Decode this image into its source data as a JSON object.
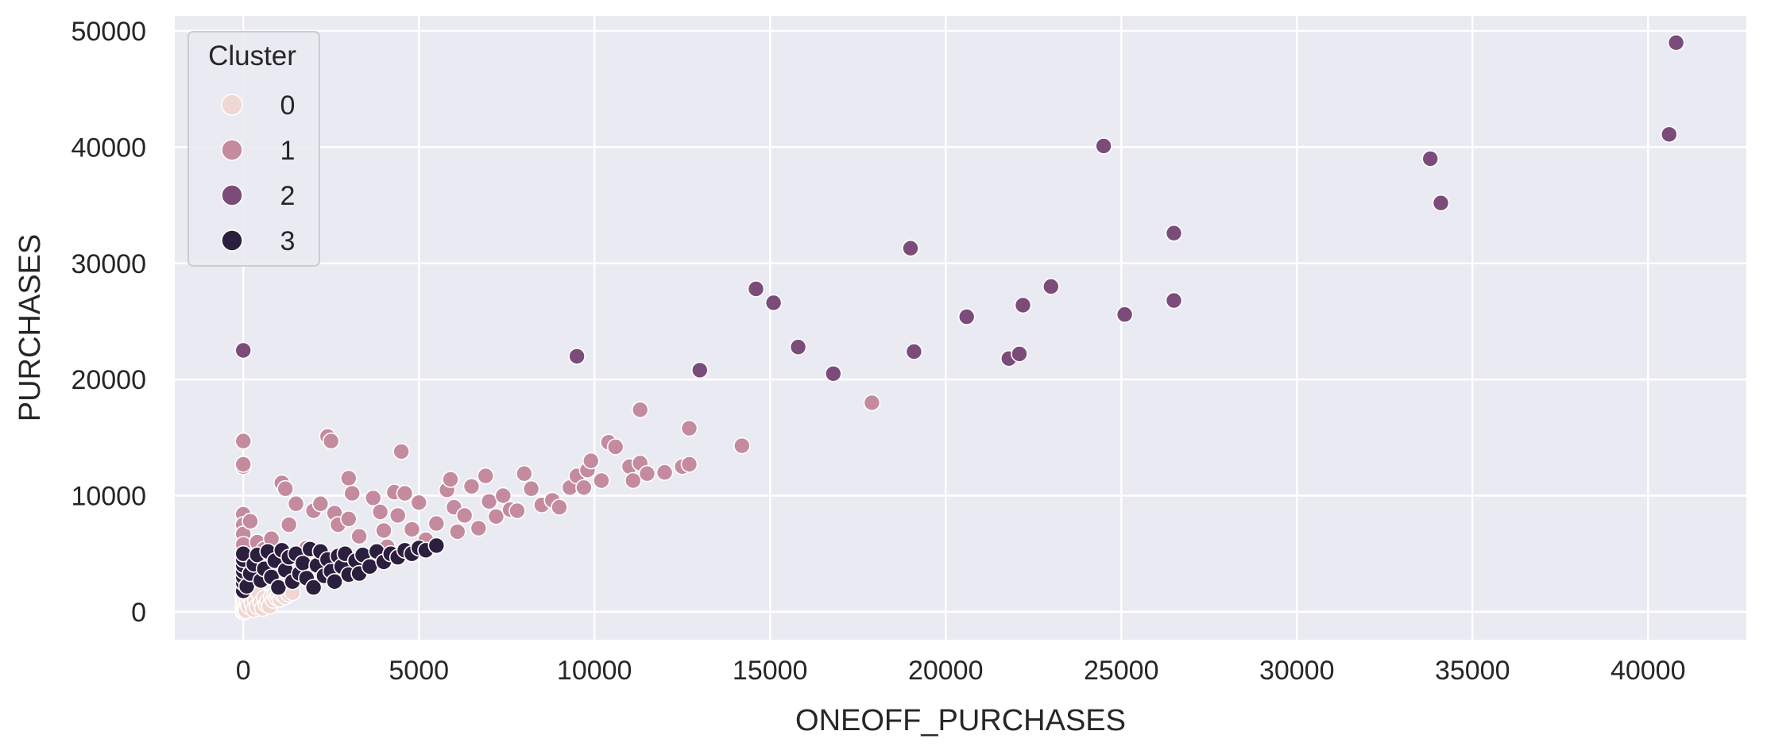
{
  "chart_data": {
    "type": "scatter",
    "xlabel": "ONEOFF_PURCHASES",
    "ylabel": "PURCHASES",
    "xlim": [
      -1950,
      42800
    ],
    "ylim": [
      -2400,
      51300
    ],
    "x_ticks": [
      0,
      5000,
      10000,
      15000,
      20000,
      25000,
      30000,
      35000,
      40000
    ],
    "y_ticks": [
      0,
      10000,
      20000,
      30000,
      40000,
      50000
    ],
    "grid": true,
    "legend": {
      "title": "Cluster",
      "placement": "top-left"
    },
    "colors": {
      "background": "#eaeaf2",
      "grid": "#ffffff",
      "point_edge": "#ffffff"
    },
    "series": [
      {
        "name": "0",
        "color": "#f0d7d1",
        "points": [
          [
            0,
            0
          ],
          [
            0,
            150
          ],
          [
            0,
            400
          ],
          [
            0,
            650
          ],
          [
            0,
            900
          ],
          [
            0,
            1150
          ],
          [
            0,
            1400
          ],
          [
            0,
            1650
          ],
          [
            60,
            300
          ],
          [
            80,
            100
          ],
          [
            120,
            800
          ],
          [
            150,
            500
          ],
          [
            200,
            1300
          ],
          [
            250,
            700
          ],
          [
            300,
            200
          ],
          [
            350,
            1000
          ],
          [
            400,
            450
          ],
          [
            450,
            1500
          ],
          [
            500,
            800
          ],
          [
            550,
            300
          ],
          [
            600,
            1200
          ],
          [
            650,
            650
          ],
          [
            700,
            900
          ],
          [
            750,
            500
          ],
          [
            800,
            1300
          ],
          [
            850,
            1000
          ],
          [
            900,
            1450
          ],
          [
            950,
            1200
          ],
          [
            1000,
            1400
          ],
          [
            1050,
            1100
          ],
          [
            1100,
            1550
          ],
          [
            1200,
            1300
          ],
          [
            1300,
            1500
          ],
          [
            1400,
            1650
          ]
        ]
      },
      {
        "name": "1",
        "color": "#c48b9f",
        "points": [
          [
            0,
            14700
          ],
          [
            0,
            12500
          ],
          [
            0,
            12700
          ],
          [
            0,
            8400
          ],
          [
            0,
            7500
          ],
          [
            0,
            6700
          ],
          [
            0,
            5800
          ],
          [
            0,
            4700
          ],
          [
            200,
            7800
          ],
          [
            400,
            6000
          ],
          [
            600,
            5400
          ],
          [
            800,
            6300
          ],
          [
            1100,
            11100
          ],
          [
            1200,
            10600
          ],
          [
            1300,
            7500
          ],
          [
            1500,
            9300
          ],
          [
            1800,
            5500
          ],
          [
            2000,
            8700
          ],
          [
            2200,
            9300
          ],
          [
            2400,
            15100
          ],
          [
            2500,
            14700
          ],
          [
            2600,
            8500
          ],
          [
            2700,
            7500
          ],
          [
            3000,
            11500
          ],
          [
            3100,
            10200
          ],
          [
            3000,
            8000
          ],
          [
            3300,
            6500
          ],
          [
            3700,
            9800
          ],
          [
            3900,
            8600
          ],
          [
            4000,
            7000
          ],
          [
            4100,
            5600
          ],
          [
            4300,
            10300
          ],
          [
            4400,
            8300
          ],
          [
            4500,
            13800
          ],
          [
            4600,
            10200
          ],
          [
            4800,
            7100
          ],
          [
            5000,
            9400
          ],
          [
            5200,
            6200
          ],
          [
            5500,
            7600
          ],
          [
            5800,
            10500
          ],
          [
            5900,
            11400
          ],
          [
            6000,
            9000
          ],
          [
            6100,
            6900
          ],
          [
            6300,
            8300
          ],
          [
            6500,
            10800
          ],
          [
            6700,
            7200
          ],
          [
            6900,
            11700
          ],
          [
            7000,
            9500
          ],
          [
            7200,
            8200
          ],
          [
            7400,
            10000
          ],
          [
            7600,
            8800
          ],
          [
            7800,
            8700
          ],
          [
            8000,
            11900
          ],
          [
            8200,
            10600
          ],
          [
            8500,
            9200
          ],
          [
            8800,
            9600
          ],
          [
            9000,
            9000
          ],
          [
            9300,
            10700
          ],
          [
            9500,
            11700
          ],
          [
            9700,
            10700
          ],
          [
            9800,
            12200
          ],
          [
            9900,
            13000
          ],
          [
            10200,
            11300
          ],
          [
            10400,
            14600
          ],
          [
            10600,
            14200
          ],
          [
            11000,
            12500
          ],
          [
            11100,
            11300
          ],
          [
            11300,
            12800
          ],
          [
            11300,
            17400
          ],
          [
            11500,
            11900
          ],
          [
            12000,
            12000
          ],
          [
            12500,
            12500
          ],
          [
            12700,
            15800
          ],
          [
            12700,
            12700
          ],
          [
            14200,
            14300
          ],
          [
            17900,
            18000
          ]
        ]
      },
      {
        "name": "2",
        "color": "#7b4b7a",
        "points": [
          [
            0,
            22500
          ],
          [
            9500,
            22000
          ],
          [
            13000,
            20800
          ],
          [
            14600,
            27800
          ],
          [
            15100,
            26600
          ],
          [
            15800,
            22800
          ],
          [
            16800,
            20500
          ],
          [
            19000,
            31300
          ],
          [
            19100,
            22400
          ],
          [
            20600,
            25400
          ],
          [
            21800,
            21800
          ],
          [
            22100,
            22200
          ],
          [
            22200,
            26400
          ],
          [
            23000,
            28000
          ],
          [
            24500,
            40100
          ],
          [
            25100,
            25600
          ],
          [
            26500,
            32600
          ],
          [
            26500,
            26800
          ],
          [
            33800,
            39000
          ],
          [
            34100,
            35200
          ],
          [
            40600,
            41100
          ],
          [
            40800,
            49000
          ]
        ]
      },
      {
        "name": "3",
        "color": "#2c1e3e",
        "points": [
          [
            0,
            1800
          ],
          [
            0,
            2500
          ],
          [
            0,
            3000
          ],
          [
            0,
            3500
          ],
          [
            0,
            4000
          ],
          [
            0,
            4500
          ],
          [
            0,
            5000
          ],
          [
            100,
            2200
          ],
          [
            200,
            3300
          ],
          [
            300,
            4100
          ],
          [
            400,
            4900
          ],
          [
            500,
            2700
          ],
          [
            600,
            3700
          ],
          [
            700,
            5200
          ],
          [
            800,
            3000
          ],
          [
            900,
            4400
          ],
          [
            1000,
            2100
          ],
          [
            1100,
            5300
          ],
          [
            1200,
            3600
          ],
          [
            1300,
            4700
          ],
          [
            1400,
            2600
          ],
          [
            1500,
            5000
          ],
          [
            1600,
            3300
          ],
          [
            1700,
            4200
          ],
          [
            1800,
            2900
          ],
          [
            1900,
            5400
          ],
          [
            2000,
            2100
          ],
          [
            2100,
            4000
          ],
          [
            2200,
            5200
          ],
          [
            2300,
            3100
          ],
          [
            2400,
            4500
          ],
          [
            2500,
            3500
          ],
          [
            2600,
            2600
          ],
          [
            2700,
            4800
          ],
          [
            2800,
            3900
          ],
          [
            2900,
            5000
          ],
          [
            3000,
            3200
          ],
          [
            3200,
            4400
          ],
          [
            3300,
            3300
          ],
          [
            3400,
            4900
          ],
          [
            3600,
            3900
          ],
          [
            3800,
            5200
          ],
          [
            4000,
            4300
          ],
          [
            4200,
            5000
          ],
          [
            4400,
            4700
          ],
          [
            4600,
            5300
          ],
          [
            4800,
            5000
          ],
          [
            5000,
            5500
          ],
          [
            5200,
            5300
          ],
          [
            5500,
            5700
          ]
        ]
      }
    ]
  }
}
